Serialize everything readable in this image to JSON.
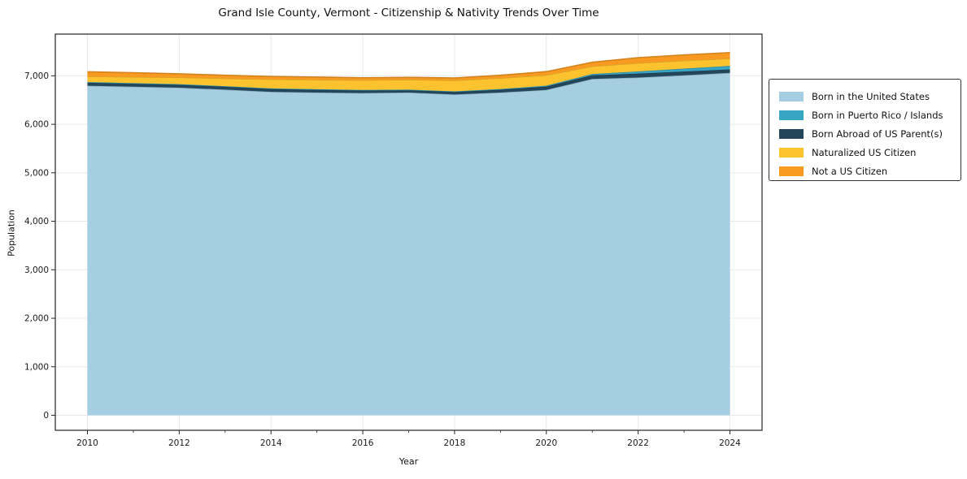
{
  "chart_data": {
    "type": "area",
    "stacked": true,
    "title": "Grand Isle County, Vermont - Citizenship & Nativity Trends Over Time",
    "xlabel": "Year",
    "ylabel": "Population",
    "x": [
      2010,
      2011,
      2012,
      2013,
      2014,
      2015,
      2016,
      2017,
      2018,
      2019,
      2020,
      2021,
      2022,
      2023,
      2024
    ],
    "series": [
      {
        "name": "Born in the United States",
        "color": "#a6cee3",
        "values": [
          6795,
          6775,
          6755,
          6715,
          6670,
          6655,
          6645,
          6655,
          6615,
          6655,
          6710,
          6935,
          6965,
          7010,
          7060
        ]
      },
      {
        "name": "Born in Puerto Rico / Islands",
        "color": "#38a5c5",
        "values": [
          8,
          8,
          8,
          8,
          8,
          8,
          8,
          8,
          10,
          12,
          18,
          26,
          45,
          60,
          72
        ]
      },
      {
        "name": "Born Abroad of US Parent(s)",
        "color": "#24465a",
        "values": [
          68,
          66,
          65,
          64,
          63,
          60,
          57,
          52,
          55,
          60,
          68,
          76,
          80,
          78,
          72
        ]
      },
      {
        "name": "Naturalized US Citizen",
        "color": "#fdc32f",
        "values": [
          118,
          126,
          140,
          158,
          186,
          194,
          200,
          207,
          225,
          226,
          218,
          158,
          172,
          165,
          152
        ]
      },
      {
        "name": "Not a US Citizen",
        "color": "#f89a22",
        "values": [
          94,
          89,
          73,
          66,
          60,
          56,
          50,
          46,
          50,
          58,
          72,
          84,
          112,
          118,
          122
        ]
      }
    ],
    "stack_order": [
      0,
      2,
      1,
      3,
      4
    ],
    "xlim": [
      2009.3,
      2024.7
    ],
    "ylim": [
      -310,
      7860
    ],
    "x_ticks": [
      2010,
      2012,
      2014,
      2016,
      2018,
      2020,
      2022,
      2024
    ],
    "x_tick_labels": [
      "2010",
      "2012",
      "2014",
      "2016",
      "2018",
      "2020",
      "2022",
      "2024"
    ],
    "x_minor_ticks": [
      2011,
      2013,
      2015,
      2017,
      2019,
      2021,
      2023
    ],
    "y_ticks": [
      0,
      1000,
      2000,
      3000,
      4000,
      5000,
      6000,
      7000
    ],
    "y_tick_labels": [
      "0",
      "1,000",
      "2,000",
      "3,000",
      "4,000",
      "5,000",
      "6,000",
      "7,000"
    ],
    "grid": true,
    "grid_color": "#e8e8e8",
    "spine_color": "#262626",
    "tick_text_color": "#1a1a1a",
    "legend_position": "right"
  }
}
